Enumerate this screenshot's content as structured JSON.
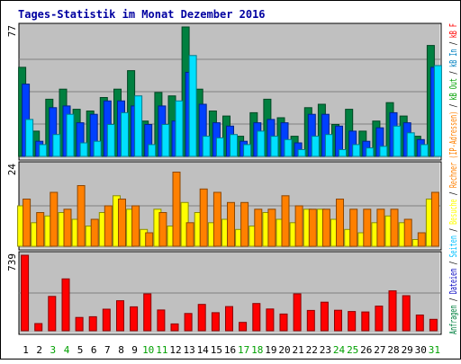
{
  "title": "Tages-Statistik im Monat Dezember 2016",
  "right_labels": [
    {
      "text": "Anfragen",
      "color": "#008040"
    },
    {
      "text": " / ",
      "color": "#000000"
    },
    {
      "text": "Dateien",
      "color": "#0000C0"
    },
    {
      "text": " / ",
      "color": "#000000"
    },
    {
      "text": "Seiten",
      "color": "#00C0FF"
    },
    {
      "text": " / ",
      "color": "#000000"
    },
    {
      "text": "Besuche",
      "color": "#FFFF00"
    },
    {
      "text": " / ",
      "color": "#000000"
    },
    {
      "text": "Rechner (IP-Adressen)",
      "color": "#FF8000"
    },
    {
      "text": " / ",
      "color": "#000000"
    },
    {
      "text": "kB Out",
      "color": "#00A000"
    },
    {
      "text": " / ",
      "color": "#000000"
    },
    {
      "text": "kB In",
      "color": "#0080C0"
    },
    {
      "text": " / ",
      "color": "#000000"
    },
    {
      "text": "kB F",
      "color": "#FF0000"
    }
  ],
  "colors": {
    "background": "#C0C0C0",
    "hits": "#008040",
    "files": "#0040FF",
    "pages": "#00E0FF",
    "visits": "#FFFF00",
    "sites": "#FF8000",
    "kbytes": "#FF0000",
    "weekend_label": "#00A000",
    "weekday_label": "#000000"
  },
  "chart_data": [
    {
      "type": "bar",
      "name": "panel-top",
      "ymax_label": "77",
      "ylim": [
        0,
        77
      ],
      "categories": [
        "1",
        "2",
        "3",
        "4",
        "5",
        "6",
        "7",
        "8",
        "9",
        "10",
        "11",
        "12",
        "13",
        "14",
        "15",
        "16",
        "17",
        "18",
        "19",
        "20",
        "21",
        "22",
        "23",
        "24",
        "25",
        "26",
        "27",
        "28",
        "29",
        "30",
        "31"
      ],
      "weekend_days": [
        "3",
        "4",
        "10",
        "11",
        "17",
        "18",
        "24",
        "25",
        "31"
      ],
      "series": [
        {
          "key": "hits",
          "values": [
            53,
            15,
            34,
            40,
            28,
            27,
            35,
            40,
            51,
            21,
            38,
            36,
            77,
            40,
            27,
            24,
            12,
            26,
            34,
            23,
            12,
            29,
            31,
            19,
            28,
            15,
            21,
            32,
            24,
            12,
            66
          ]
        },
        {
          "key": "files",
          "values": [
            43,
            9,
            29,
            30,
            20,
            25,
            33,
            33,
            30,
            19,
            30,
            21,
            50,
            31,
            20,
            18,
            9,
            20,
            22,
            20,
            8,
            25,
            25,
            18,
            15,
            9,
            17,
            26,
            20,
            10,
            53
          ]
        },
        {
          "key": "pages",
          "values": [
            22,
            7,
            13,
            25,
            8,
            9,
            19,
            26,
            36,
            7,
            19,
            33,
            60,
            12,
            11,
            13,
            7,
            15,
            12,
            10,
            4,
            12,
            13,
            4,
            7,
            5,
            6,
            18,
            14,
            7,
            54
          ]
        }
      ]
    },
    {
      "type": "bar",
      "name": "panel-middle",
      "ymax_label": "24",
      "ylim": [
        0,
        24
      ],
      "categories": [
        "1",
        "2",
        "3",
        "4",
        "5",
        "6",
        "7",
        "8",
        "9",
        "10",
        "11",
        "12",
        "13",
        "14",
        "15",
        "16",
        "17",
        "18",
        "19",
        "20",
        "21",
        "22",
        "23",
        "24",
        "25",
        "26",
        "27",
        "28",
        "29",
        "30",
        "31"
      ],
      "weekend_days": [
        "3",
        "4",
        "10",
        "11",
        "17",
        "18",
        "24",
        "25",
        "31"
      ],
      "series": [
        {
          "key": "visits",
          "values": [
            12,
            7,
            9,
            10,
            8,
            6,
            10,
            15,
            11,
            5,
            11,
            6,
            13,
            10,
            7,
            8,
            5,
            6,
            10,
            8,
            7,
            11,
            11,
            8,
            5,
            4,
            7,
            9,
            7,
            2,
            14
          ]
        },
        {
          "key": "sites",
          "values": [
            14,
            10,
            16,
            11,
            18,
            8,
            12,
            14,
            12,
            4,
            10,
            22,
            7,
            17,
            16,
            13,
            13,
            11,
            11,
            15,
            12,
            11,
            11,
            14,
            11,
            11,
            11,
            11,
            8,
            4,
            16
          ]
        }
      ]
    },
    {
      "type": "bar",
      "name": "panel-bottom",
      "ymax_label": "739",
      "ylim": [
        0,
        739
      ],
      "categories": [
        "1",
        "2",
        "3",
        "4",
        "5",
        "6",
        "7",
        "8",
        "9",
        "10",
        "11",
        "12",
        "13",
        "14",
        "15",
        "16",
        "17",
        "18",
        "19",
        "20",
        "21",
        "22",
        "23",
        "24",
        "25",
        "26",
        "27",
        "28",
        "29",
        "30",
        "31"
      ],
      "weekend_days": [
        "3",
        "4",
        "10",
        "11",
        "17",
        "18",
        "24",
        "25",
        "31"
      ],
      "series": [
        {
          "key": "kbytes",
          "values": [
            739,
            70,
            336,
            508,
            130,
            137,
            211,
            294,
            234,
            361,
            203,
            67,
            169,
            258,
            177,
            237,
            82,
            267,
            213,
            164,
            361,
            199,
            280,
            201,
            188,
            184,
            241,
            391,
            343,
            154,
            112
          ]
        }
      ]
    }
  ]
}
